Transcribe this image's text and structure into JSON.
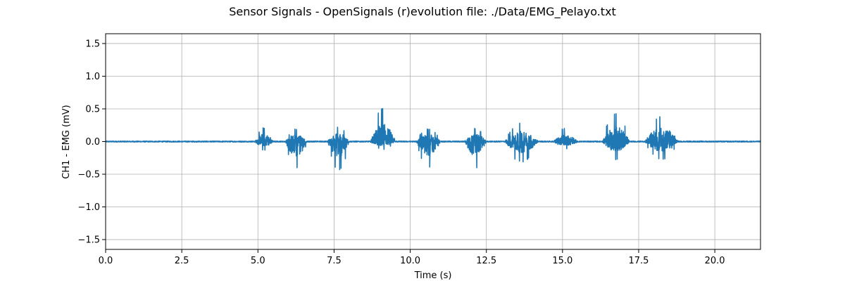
{
  "chart_data": {
    "type": "line",
    "title": "Sensor Signals - OpenSignals (r)evolution file: ./Data/EMG_Pelayo.txt",
    "xlabel": "Time (s)",
    "ylabel": "CH1 - EMG (mV)",
    "xlim": [
      0.0,
      21.5
    ],
    "ylim": [
      -1.65,
      1.65
    ],
    "xticks": [
      0.0,
      2.5,
      5.0,
      7.5,
      10.0,
      12.5,
      15.0,
      17.5,
      20.0
    ],
    "xtick_labels": [
      "0.0",
      "2.5",
      "5.0",
      "7.5",
      "10.0",
      "12.5",
      "15.0",
      "17.5",
      "20.0"
    ],
    "yticks": [
      1.5,
      1.0,
      0.5,
      0.0,
      -0.5,
      -1.0,
      -1.5
    ],
    "ytick_labels": [
      "1.5",
      "1.0",
      "0.5",
      "0.0",
      "−0.5",
      "−1.0",
      "−1.5"
    ],
    "grid": true,
    "series": [
      {
        "color": "#1f77b4",
        "baseline_noise": 0.008,
        "bursts": [
          {
            "start": 4.9,
            "end": 5.5,
            "min": -0.13,
            "max": 0.21
          },
          {
            "start": 5.9,
            "end": 6.6,
            "min": -0.4,
            "max": 0.19
          },
          {
            "start": 7.3,
            "end": 8.0,
            "min": -0.43,
            "max": 0.22
          },
          {
            "start": 8.7,
            "end": 9.5,
            "min": -0.12,
            "max": 0.5
          },
          {
            "start": 10.2,
            "end": 11.0,
            "min": -0.39,
            "max": 0.19
          },
          {
            "start": 11.8,
            "end": 12.5,
            "min": -0.4,
            "max": 0.2
          },
          {
            "start": 13.1,
            "end": 14.2,
            "min": -0.31,
            "max": 0.28
          },
          {
            "start": 14.7,
            "end": 15.5,
            "min": -0.11,
            "max": 0.2
          },
          {
            "start": 16.3,
            "end": 17.2,
            "min": -0.27,
            "max": 0.42
          },
          {
            "start": 17.7,
            "end": 18.8,
            "min": -0.27,
            "max": 0.38
          }
        ]
      }
    ]
  }
}
